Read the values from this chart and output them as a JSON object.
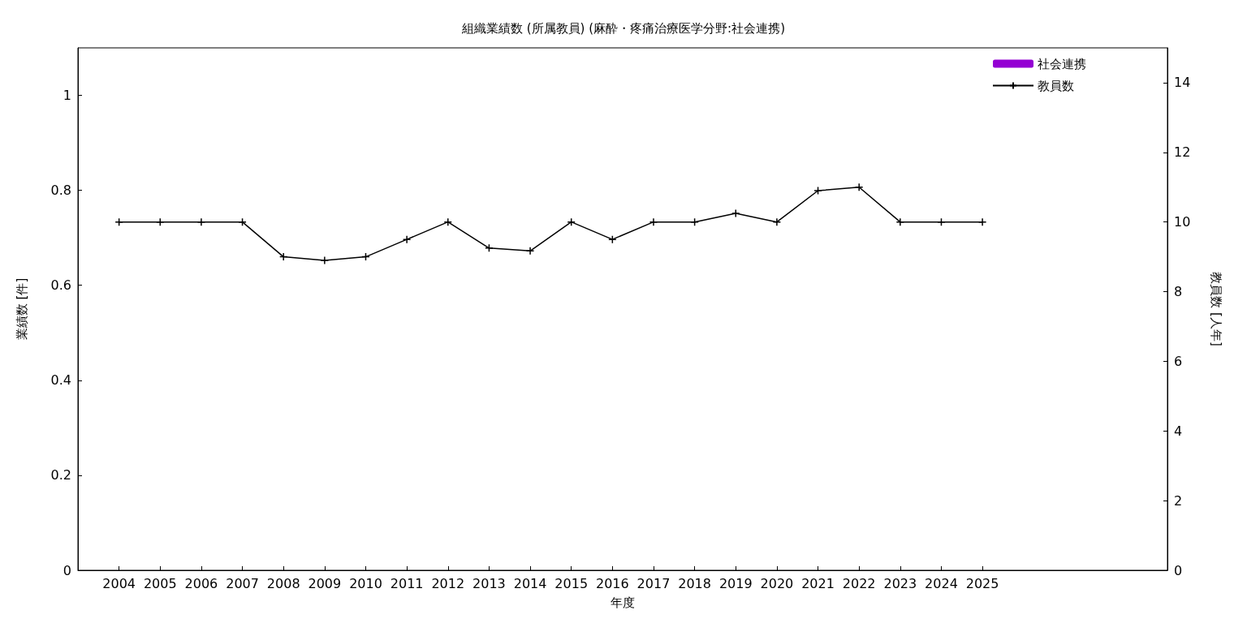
{
  "chart_data": {
    "type": "line",
    "title": "組織業績数 (所属教員) (麻酔・疼痛治療医学分野:社会連携)",
    "xlabel": "年度",
    "ylabel": "業績数 [件]",
    "y2label": "教員数 [人年]",
    "x": [
      2004,
      2005,
      2006,
      2007,
      2008,
      2009,
      2010,
      2011,
      2012,
      2013,
      2014,
      2015,
      2016,
      2017,
      2018,
      2019,
      2020,
      2021,
      2022,
      2023,
      2024,
      2025
    ],
    "xlim": [
      2003,
      2029.5
    ],
    "xticks": [
      2004,
      2005,
      2006,
      2007,
      2008,
      2009,
      2010,
      2011,
      2012,
      2013,
      2014,
      2015,
      2016,
      2017,
      2018,
      2019,
      2020,
      2021,
      2022,
      2023,
      2024,
      2025
    ],
    "ylim": [
      0,
      1.1
    ],
    "yticks": [
      0,
      0.2,
      0.4,
      0.6,
      0.8,
      1
    ],
    "y2lim": [
      0,
      15
    ],
    "y2ticks": [
      0,
      2,
      4,
      6,
      8,
      10,
      12,
      14
    ],
    "series": [
      {
        "name": "社会連携",
        "type": "bar",
        "color": "#9400d3",
        "values": [
          0,
          0,
          0,
          0,
          0,
          0,
          0,
          0,
          0,
          0,
          0,
          0,
          0,
          0,
          0,
          0,
          0,
          0,
          0,
          0,
          0,
          0
        ]
      },
      {
        "name": "教員数",
        "axis": "y2",
        "color": "#000000",
        "values": [
          10,
          10,
          10,
          10,
          9,
          8.9,
          9,
          9.5,
          10,
          9.25,
          9.17,
          10,
          9.5,
          10,
          10,
          10.25,
          10,
          10.9,
          11,
          10,
          10,
          10
        ]
      }
    ],
    "marker": "cross",
    "line_style": "solid",
    "grid": false,
    "legend": "top right"
  }
}
